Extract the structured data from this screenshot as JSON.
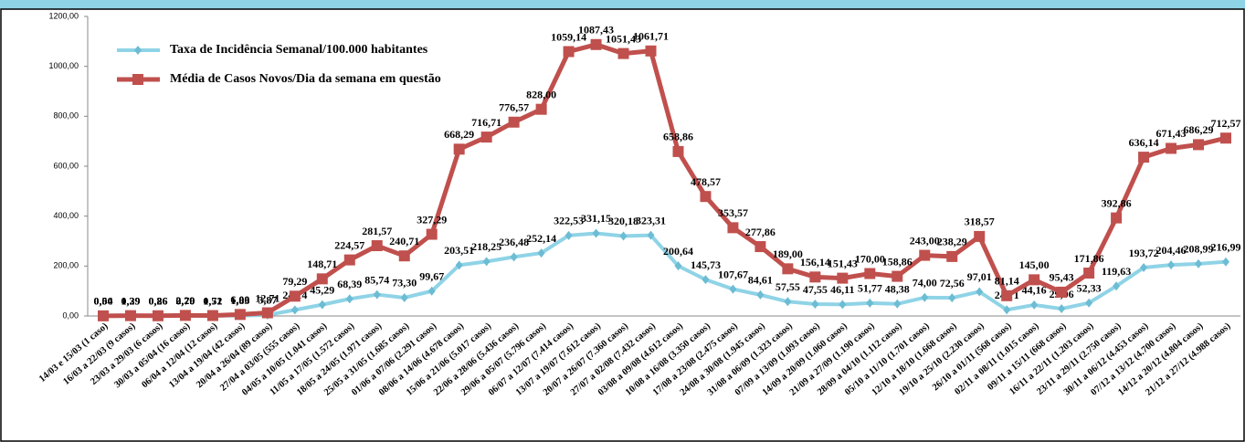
{
  "chart_data": {
    "type": "line",
    "categories": [
      "14/03 e 15/03 (1 caso)",
      "16/03 a 22/03 (9 casos)",
      "23/03 a 29/03 (6 casos)",
      "30/03 a 05/04 (16 casos)",
      "06/04 a 12/04 (12 casos)",
      "13/04 a 19/04 (42 casos)",
      "20/04 a 26/04 (89 casos)",
      "27/04 a 03/05 (555 casos)",
      "04/05 a 10/05 (1.041 casos)",
      "11/05 a 17/05 (1.572 casos)",
      "18/05 a 24/05 (1.971 casos)",
      "25/05 a 31/05 (1.685 casos)",
      "01/06 a 07/06 (2.291 casos)",
      "08/06 a 14/06 (4.678 casos)",
      "15/06 a 21/06 (5.017 casos)",
      "22/06 a 28/06 (5.436 casos)",
      "29/06 a 05/07 (5.796 casos)",
      "06/07 a 12/07 (7.414 casos)",
      "13/07 a 19/07 (7.612 casos)",
      "20/07 a 26/07 (7.360 casos)",
      "27/07 a 02/08 (7.432 casos)",
      "03/08 a 09/08 (4.612 casos)",
      "10/08 a 16/08 (3.350 casos)",
      "17/08 a 23/08 (2.475 casos)",
      "24/08 a 30/08 (1.945 casos)",
      "31/08 a 06/09 (1.323 casos)",
      "07/09 a 13/09 (1.093 casos)",
      "14/09 a 20/09 (1.060 casos)",
      "21/09 a 27/09 (1.190 casos)",
      "28/09 a 04/10 (1.112 casos)",
      "05/10 a 11/10 (1.701 casos)",
      "12/10 a 18/10 (1.668 casos)",
      "19/10 a 25/10 (2.230 casos)",
      "26/10 a 01/11 (568 casos)",
      "02/11 a 08/11 (1.015 casos)",
      "09/11 a 15/11 (668 casos)",
      "16/11 a 22/11 (1.203 casos)",
      "23/11 a 29/11 (2.750 casos)",
      "30/11 a 06/12 (4.453 casos)",
      "07/12 a 13/12 (4.700 casos)",
      "14/12 a 20/12 (4.804 casos)",
      "21/12 a 27/12 (4.988 casos)"
    ],
    "series": [
      {
        "name": "Taxa de Incidência Semanal/100.000 habitantes",
        "color": "#8fd3e6",
        "marker": "diamond",
        "values": [
          0.04,
          0.39,
          0.26,
          0.7,
          0.52,
          1.83,
          3.87,
          24.14,
          45.29,
          68.39,
          85.74,
          73.3,
          99.67,
          203.51,
          218.25,
          236.48,
          252.14,
          322.53,
          331.15,
          320.18,
          323.31,
          200.64,
          145.73,
          107.67,
          84.61,
          57.55,
          47.55,
          46.11,
          51.77,
          48.38,
          74.0,
          72.56,
          97.01,
          24.71,
          44.16,
          29.06,
          52.33,
          119.63,
          193.72,
          204.46,
          208.99,
          216.99
        ],
        "value_labels": [
          "0,04",
          "0,39",
          "0,26",
          "0,70",
          "0,52",
          "1,83",
          "3,87",
          "24,14",
          "45,29",
          "68,39",
          "85,74",
          "73,30",
          "99,67",
          "203,51",
          "218,25",
          "236,48",
          "252,14",
          "322,53",
          "331,15",
          "320,18",
          "323,31",
          "200,64",
          "145,73",
          "107,67",
          "84,61",
          "57,55",
          "47,55",
          "46,11",
          "51,77",
          "48,38",
          "74,00",
          "72,56",
          "97,01",
          "24,71",
          "44,16",
          "29,06",
          "52,33",
          "119,63",
          "193,72",
          "204,46",
          "208,99",
          "216,99"
        ]
      },
      {
        "name": "Média de Casos Novos/Dia da semana em questão",
        "color": "#c0504d",
        "marker": "square",
        "values": [
          0.5,
          1.29,
          0.86,
          2.29,
          1.71,
          6.0,
          12.71,
          79.29,
          148.71,
          224.57,
          281.57,
          240.71,
          327.29,
          668.29,
          716.71,
          776.57,
          828.0,
          1059.14,
          1087.43,
          1051.43,
          1061.71,
          658.86,
          478.57,
          353.57,
          277.86,
          189.0,
          156.14,
          151.43,
          170.0,
          158.86,
          243.0,
          238.29,
          318.57,
          81.14,
          145.0,
          95.43,
          171.86,
          392.86,
          636.14,
          671.43,
          686.29,
          712.57
        ],
        "value_labels": [
          "0,50",
          "1,29",
          "0,86",
          "2,29",
          "1,71",
          "6,00",
          "12,71",
          "79,29",
          "148,71",
          "224,57",
          "281,57",
          "240,71",
          "327,29",
          "668,29",
          "716,71",
          "776,57",
          "828,00",
          "1059,14",
          "1087,43",
          "1051,43",
          "1061,71",
          "658,86",
          "478,57",
          "353,57",
          "277,86",
          "189,00",
          "156,14",
          "151,43",
          "170,00",
          "158,86",
          "243,00",
          "238,29",
          "318,57",
          "81,14",
          "145,00",
          "95,43",
          "171,86",
          "392,86",
          "636,14",
          "671,43",
          "686,29",
          "712,57"
        ]
      }
    ],
    "ylim": [
      0,
      1200
    ],
    "yticks": [
      {
        "value": 0,
        "label": "0,00"
      },
      {
        "value": 200,
        "label": "200,00"
      },
      {
        "value": 400,
        "label": "400,00"
      },
      {
        "value": 600,
        "label": "600,00"
      },
      {
        "value": 800,
        "label": "800,00"
      },
      {
        "value": 1000,
        "label": "1000,00"
      },
      {
        "value": 1200,
        "label": "1200,00"
      }
    ],
    "grid": false,
    "legend": "upper left"
  }
}
